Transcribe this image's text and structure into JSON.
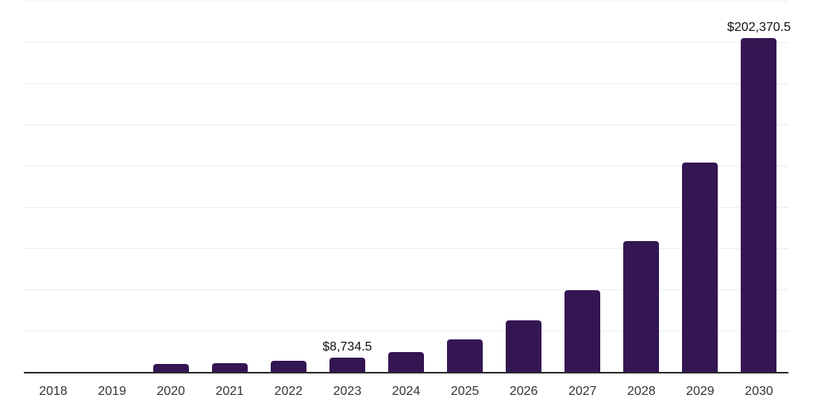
{
  "page": {
    "background_color": "#ffffff"
  },
  "chart_data": {
    "type": "bar",
    "title": "",
    "xlabel": "",
    "ylabel": "",
    "categories": [
      "2018",
      "2019",
      "2020",
      "2021",
      "2022",
      "2023",
      "2024",
      "2025",
      "2026",
      "2027",
      "2028",
      "2029",
      "2030"
    ],
    "values": [
      150,
      300,
      4600,
      5300,
      6600,
      8734.5,
      12200,
      19500,
      31100,
      49700,
      79400,
      127000,
      202370.5
    ],
    "data_labels": [
      {
        "category": "2023",
        "text": "$8,734.5"
      },
      {
        "category": "2030",
        "text": "$202,370.5"
      }
    ],
    "ylim": [
      0,
      225000
    ],
    "gridline_interval": 25000,
    "grid": "horizontal",
    "legend_position": "none",
    "colors": {
      "bar": "#341652",
      "axis_line": "#2b2b2b",
      "gridline": "#ededed",
      "data_label_text": "#111111",
      "tick_label_text": "#333333",
      "background": "#ffffff"
    }
  }
}
